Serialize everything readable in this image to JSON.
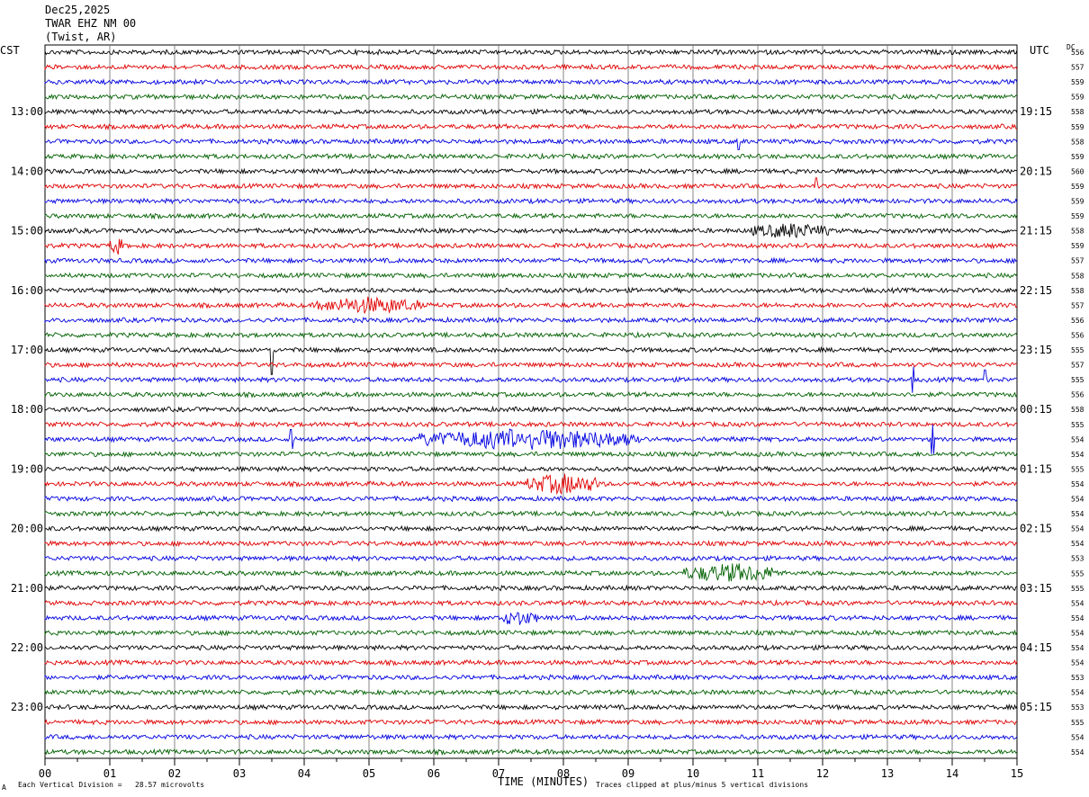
{
  "header": {
    "date": "Dec25,2025",
    "station": "TWAR EHZ NM 00",
    "location": "(Twist, AR)"
  },
  "left_zone": "CST",
  "right_zone": "UTC",
  "dc_header": "DC",
  "footer": {
    "scale_text": "Each Vertical Division =   28.57 microvolts",
    "clip_text": "Traces clipped at plus/minus 5 vertical divisions",
    "corner_mark": "A"
  },
  "colors": {
    "trace_cycle": [
      "#000000",
      "#e00000",
      "#0000e0",
      "#006000"
    ],
    "grid": "#666666"
  },
  "chart_data": {
    "type": "line",
    "title": "Dec25,2025",
    "xlabel": "TIME (MINUTES)",
    "ylabel": "",
    "x_ticks": [
      "00",
      "01",
      "02",
      "03",
      "04",
      "05",
      "06",
      "07",
      "08",
      "09",
      "10",
      "11",
      "12",
      "13",
      "14",
      "15"
    ],
    "xlim": [
      0,
      15
    ],
    "grid": true,
    "left_hour_labels": [
      "13:00",
      "14:00",
      "15:00",
      "16:00",
      "17:00",
      "18:00",
      "19:00",
      "20:00",
      "21:00",
      "22:00",
      "23:00"
    ],
    "right_hour_labels": [
      "19:15",
      "20:15",
      "21:15",
      "22:15",
      "23:15",
      "00:15",
      "01:15",
      "02:15",
      "03:15",
      "04:15",
      "05:15"
    ],
    "dc_offsets": [
      "556",
      "557",
      "559",
      "559",
      "558",
      "559",
      "558",
      "559",
      "560",
      "559",
      "559",
      "559",
      "558",
      "559",
      "557",
      "558",
      "558",
      "557",
      "556",
      "556",
      "555",
      "557",
      "555",
      "556",
      "558",
      "555",
      "554",
      "554",
      "555",
      "554",
      "554",
      "554",
      "554",
      "554",
      "553",
      "555",
      "555",
      "554",
      "554",
      "554",
      "554",
      "554",
      "553",
      "554",
      "553",
      "555",
      "554",
      "554"
    ],
    "events": [
      {
        "trace": 20,
        "minute": 3.5,
        "amplitude": 3.0,
        "type": "spike"
      },
      {
        "trace": 26,
        "minute": 7.5,
        "amplitude": 1.4,
        "width_min": 3.5,
        "type": "burst"
      },
      {
        "trace": 29,
        "minute": 8.0,
        "amplitude": 1.3,
        "width_min": 1.2,
        "type": "burst"
      },
      {
        "trace": 35,
        "minute": 10.6,
        "amplitude": 1.2,
        "width_min": 1.5,
        "type": "burst"
      },
      {
        "trace": 17,
        "minute": 5.0,
        "amplitude": 1.0,
        "width_min": 1.6,
        "type": "burst"
      },
      {
        "trace": 12,
        "minute": 11.5,
        "amplitude": 0.9,
        "width_min": 1.2,
        "type": "burst"
      },
      {
        "trace": 13,
        "minute": 1.1,
        "amplitude": 1.2,
        "width_min": 0.2,
        "type": "burst"
      },
      {
        "trace": 22,
        "minute": 13.4,
        "amplitude": 1.6,
        "type": "spike"
      },
      {
        "trace": 22,
        "minute": 14.5,
        "amplitude": 1.2,
        "type": "spike"
      },
      {
        "trace": 26,
        "minute": 13.7,
        "amplitude": 1.8,
        "type": "spike"
      },
      {
        "trace": 26,
        "minute": 3.8,
        "amplitude": 1.2,
        "type": "spike"
      },
      {
        "trace": 6,
        "minute": 10.7,
        "amplitude": 1.0,
        "type": "spike"
      },
      {
        "trace": 9,
        "minute": 11.9,
        "amplitude": 1.0,
        "type": "spike"
      },
      {
        "trace": 38,
        "minute": 7.3,
        "amplitude": 0.9,
        "width_min": 0.6,
        "type": "burst"
      }
    ]
  }
}
